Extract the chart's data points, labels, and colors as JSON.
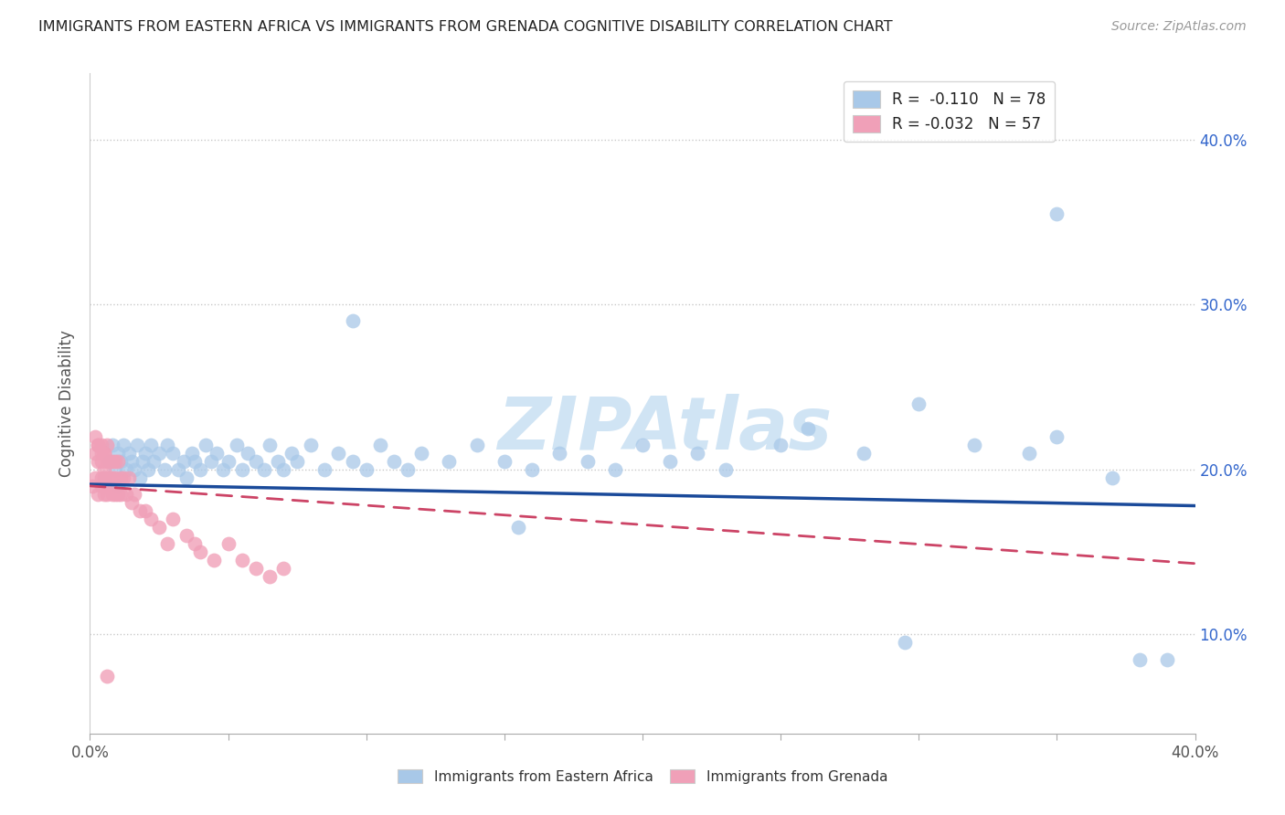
{
  "title": "IMMIGRANTS FROM EASTERN AFRICA VS IMMIGRANTS FROM GRENADA COGNITIVE DISABILITY CORRELATION CHART",
  "source": "Source: ZipAtlas.com",
  "ylabel": "Cognitive Disability",
  "xlim": [
    0.0,
    0.4
  ],
  "ylim": [
    0.04,
    0.44
  ],
  "yticks": [
    0.1,
    0.2,
    0.3,
    0.4
  ],
  "ytick_labels": [
    "10.0%",
    "20.0%",
    "30.0%",
    "40.0%"
  ],
  "legend_label1": "R =  -0.110   N = 78",
  "legend_label2": "R = -0.032   N = 57",
  "color_blue": "#a8c8e8",
  "color_pink": "#f0a0b8",
  "line_color_blue": "#1a4a9a",
  "line_color_pink": "#cc4466",
  "watermark_text": "ZIPAtlas",
  "watermark_color": "#d0e4f4",
  "background_color": "#ffffff",
  "blue_line_start_y": 0.191,
  "blue_line_end_y": 0.178,
  "pink_line_start_y": 0.19,
  "pink_line_end_y": 0.143,
  "blue_scatter_x": [
    0.005,
    0.007,
    0.008,
    0.009,
    0.01,
    0.01,
    0.011,
    0.012,
    0.013,
    0.014,
    0.015,
    0.016,
    0.017,
    0.018,
    0.019,
    0.02,
    0.021,
    0.022,
    0.023,
    0.025,
    0.027,
    0.028,
    0.03,
    0.032,
    0.034,
    0.035,
    0.037,
    0.038,
    0.04,
    0.042,
    0.044,
    0.046,
    0.048,
    0.05,
    0.053,
    0.055,
    0.057,
    0.06,
    0.063,
    0.065,
    0.068,
    0.07,
    0.073,
    0.075,
    0.08,
    0.085,
    0.09,
    0.095,
    0.1,
    0.105,
    0.11,
    0.115,
    0.12,
    0.13,
    0.14,
    0.15,
    0.16,
    0.17,
    0.18,
    0.19,
    0.2,
    0.21,
    0.22,
    0.23,
    0.25,
    0.26,
    0.28,
    0.3,
    0.32,
    0.34,
    0.35,
    0.37,
    0.39,
    0.295,
    0.155,
    0.095,
    0.35,
    0.38
  ],
  "blue_scatter_y": [
    0.195,
    0.205,
    0.215,
    0.2,
    0.21,
    0.19,
    0.205,
    0.215,
    0.2,
    0.21,
    0.205,
    0.2,
    0.215,
    0.195,
    0.205,
    0.21,
    0.2,
    0.215,
    0.205,
    0.21,
    0.2,
    0.215,
    0.21,
    0.2,
    0.205,
    0.195,
    0.21,
    0.205,
    0.2,
    0.215,
    0.205,
    0.21,
    0.2,
    0.205,
    0.215,
    0.2,
    0.21,
    0.205,
    0.2,
    0.215,
    0.205,
    0.2,
    0.21,
    0.205,
    0.215,
    0.2,
    0.21,
    0.205,
    0.2,
    0.215,
    0.205,
    0.2,
    0.21,
    0.205,
    0.215,
    0.205,
    0.2,
    0.21,
    0.205,
    0.2,
    0.215,
    0.205,
    0.21,
    0.2,
    0.215,
    0.225,
    0.21,
    0.24,
    0.215,
    0.21,
    0.22,
    0.195,
    0.085,
    0.095,
    0.165,
    0.29,
    0.355,
    0.085
  ],
  "pink_scatter_x": [
    0.001,
    0.002,
    0.002,
    0.003,
    0.003,
    0.003,
    0.004,
    0.004,
    0.004,
    0.004,
    0.005,
    0.005,
    0.005,
    0.005,
    0.005,
    0.006,
    0.006,
    0.006,
    0.006,
    0.007,
    0.007,
    0.007,
    0.008,
    0.008,
    0.008,
    0.009,
    0.009,
    0.009,
    0.01,
    0.01,
    0.011,
    0.011,
    0.012,
    0.013,
    0.014,
    0.015,
    0.016,
    0.018,
    0.02,
    0.022,
    0.025,
    0.028,
    0.03,
    0.035,
    0.038,
    0.04,
    0.045,
    0.05,
    0.055,
    0.06,
    0.065,
    0.07,
    0.002,
    0.003,
    0.004,
    0.005,
    0.006
  ],
  "pink_scatter_y": [
    0.19,
    0.21,
    0.195,
    0.205,
    0.185,
    0.215,
    0.195,
    0.205,
    0.19,
    0.215,
    0.195,
    0.185,
    0.2,
    0.21,
    0.19,
    0.195,
    0.205,
    0.185,
    0.215,
    0.19,
    0.205,
    0.195,
    0.185,
    0.205,
    0.195,
    0.185,
    0.205,
    0.195,
    0.185,
    0.205,
    0.195,
    0.185,
    0.195,
    0.185,
    0.195,
    0.18,
    0.185,
    0.175,
    0.175,
    0.17,
    0.165,
    0.155,
    0.17,
    0.16,
    0.155,
    0.15,
    0.145,
    0.155,
    0.145,
    0.14,
    0.135,
    0.14,
    0.22,
    0.215,
    0.21,
    0.21,
    0.075
  ]
}
